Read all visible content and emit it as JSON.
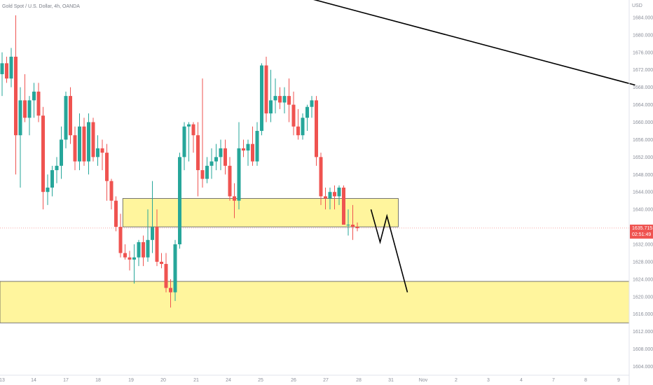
{
  "header": {
    "symbol_title": "Gold Spot / U.S. Dollar, 4h, OANDA"
  },
  "price_axis": {
    "currency": "USD",
    "ticks": [
      "1684.000",
      "1680.000",
      "1676.000",
      "1672.000",
      "1668.000",
      "1664.000",
      "1660.000",
      "1656.000",
      "1652.000",
      "1648.000",
      "1644.000",
      "1640.000",
      "1636.000",
      "1632.000",
      "1628.000",
      "1624.000",
      "1620.000",
      "1616.000",
      "1612.000",
      "1608.000",
      "1604.000"
    ],
    "last_price": "1635.715",
    "countdown": "02:51:49"
  },
  "time_axis": {
    "ticks": [
      "13",
      "14",
      "17",
      "18",
      "19",
      "20",
      "21",
      "24",
      "25",
      "26",
      "27",
      "28",
      "31",
      "Nov",
      "2",
      "3",
      "4",
      "7",
      "8",
      "9"
    ]
  },
  "colors": {
    "up": "#26a69a",
    "down": "#ef5350",
    "zone_fill": "#fff59d",
    "zone_border": "#555555",
    "line": "#000000",
    "price_tag": "#ef5350"
  },
  "chart_data": {
    "type": "candlestick",
    "instrument": "Gold Spot / U.S. Dollar",
    "timeframe": "4h",
    "x_ticks": [
      "13",
      "14",
      "17",
      "18",
      "19",
      "20",
      "21",
      "24",
      "25",
      "26",
      "27",
      "28",
      "31",
      "Nov",
      "2",
      "3",
      "4",
      "7",
      "8",
      "9"
    ],
    "ylim": [
      1602,
      1688
    ],
    "y_ticks": [
      1604,
      1608,
      1612,
      1616,
      1620,
      1624,
      1628,
      1632,
      1636,
      1640,
      1644,
      1648,
      1652,
      1656,
      1660,
      1664,
      1668,
      1672,
      1676,
      1680,
      1684
    ],
    "candles": [
      {
        "o": 1671.0,
        "h": 1676.0,
        "l": 1666.0,
        "c": 1673.5
      },
      {
        "o": 1673.5,
        "h": 1675.0,
        "l": 1669.0,
        "c": 1670.0
      },
      {
        "o": 1670.0,
        "h": 1677.0,
        "l": 1668.0,
        "c": 1675.0
      },
      {
        "o": 1675.0,
        "h": 1684.5,
        "l": 1648.0,
        "c": 1657.0
      },
      {
        "o": 1657.0,
        "h": 1668.0,
        "l": 1645.0,
        "c": 1665.0
      },
      {
        "o": 1665.0,
        "h": 1671.0,
        "l": 1660.0,
        "c": 1661.0
      },
      {
        "o": 1661.0,
        "h": 1666.0,
        "l": 1657.0,
        "c": 1665.0
      },
      {
        "o": 1665.0,
        "h": 1669.0,
        "l": 1661.0,
        "c": 1667.0
      },
      {
        "o": 1667.0,
        "h": 1669.0,
        "l": 1660.0,
        "c": 1661.5
      },
      {
        "o": 1661.5,
        "h": 1663.5,
        "l": 1640.0,
        "c": 1644.0
      },
      {
        "o": 1644.0,
        "h": 1648.0,
        "l": 1641.0,
        "c": 1645.0
      },
      {
        "o": 1645.0,
        "h": 1650.0,
        "l": 1643.0,
        "c": 1649.0
      },
      {
        "o": 1649.0,
        "h": 1652.0,
        "l": 1646.0,
        "c": 1650.0
      },
      {
        "o": 1650.0,
        "h": 1659.0,
        "l": 1647.0,
        "c": 1656.0
      },
      {
        "o": 1656.0,
        "h": 1667.0,
        "l": 1654.0,
        "c": 1666.0
      },
      {
        "o": 1666.0,
        "h": 1668.0,
        "l": 1655.0,
        "c": 1657.0
      },
      {
        "o": 1657.0,
        "h": 1659.0,
        "l": 1649.0,
        "c": 1651.0
      },
      {
        "o": 1651.0,
        "h": 1662.0,
        "l": 1649.0,
        "c": 1659.0
      },
      {
        "o": 1659.0,
        "h": 1661.0,
        "l": 1650.0,
        "c": 1651.0
      },
      {
        "o": 1651.0,
        "h": 1662.0,
        "l": 1648.0,
        "c": 1660.0
      },
      {
        "o": 1660.0,
        "h": 1661.0,
        "l": 1651.0,
        "c": 1652.0
      },
      {
        "o": 1652.0,
        "h": 1657.0,
        "l": 1650.0,
        "c": 1654.0
      },
      {
        "o": 1654.0,
        "h": 1656.0,
        "l": 1649.0,
        "c": 1653.0
      },
      {
        "o": 1653.0,
        "h": 1655.0,
        "l": 1642.0,
        "c": 1646.5
      },
      {
        "o": 1646.5,
        "h": 1647.0,
        "l": 1640.0,
        "c": 1642.0
      },
      {
        "o": 1642.0,
        "h": 1643.0,
        "l": 1635.0,
        "c": 1636.0
      },
      {
        "o": 1636.0,
        "h": 1639.0,
        "l": 1629.0,
        "c": 1630.0
      },
      {
        "o": 1630.0,
        "h": 1632.0,
        "l": 1628.5,
        "c": 1629.0
      },
      {
        "o": 1629.0,
        "h": 1630.5,
        "l": 1626.0,
        "c": 1628.5
      },
      {
        "o": 1628.5,
        "h": 1632.0,
        "l": 1623.0,
        "c": 1629.0
      },
      {
        "o": 1629.0,
        "h": 1633.0,
        "l": 1627.0,
        "c": 1632.5
      },
      {
        "o": 1632.5,
        "h": 1634.0,
        "l": 1627.0,
        "c": 1629.0
      },
      {
        "o": 1629.0,
        "h": 1640.0,
        "l": 1628.0,
        "c": 1633.0
      },
      {
        "o": 1633.0,
        "h": 1646.5,
        "l": 1630.0,
        "c": 1636.0
      },
      {
        "o": 1636.0,
        "h": 1640.0,
        "l": 1627.0,
        "c": 1628.0
      },
      {
        "o": 1628.0,
        "h": 1630.0,
        "l": 1626.5,
        "c": 1627.5
      },
      {
        "o": 1627.5,
        "h": 1630.0,
        "l": 1621.0,
        "c": 1622.0
      },
      {
        "o": 1622.0,
        "h": 1624.0,
        "l": 1617.5,
        "c": 1621.0
      },
      {
        "o": 1621.0,
        "h": 1633.0,
        "l": 1619.0,
        "c": 1632.0
      },
      {
        "o": 1632.0,
        "h": 1653.0,
        "l": 1631.0,
        "c": 1652.0
      },
      {
        "o": 1652.0,
        "h": 1660.0,
        "l": 1649.0,
        "c": 1659.0
      },
      {
        "o": 1659.0,
        "h": 1660.0,
        "l": 1651.0,
        "c": 1659.5
      },
      {
        "o": 1659.5,
        "h": 1660.0,
        "l": 1653.0,
        "c": 1657.0
      },
      {
        "o": 1657.0,
        "h": 1660.0,
        "l": 1643.0,
        "c": 1649.0
      },
      {
        "o": 1649.0,
        "h": 1670.0,
        "l": 1645.0,
        "c": 1647.0
      },
      {
        "o": 1647.0,
        "h": 1652.0,
        "l": 1646.0,
        "c": 1650.0
      },
      {
        "o": 1650.0,
        "h": 1654.0,
        "l": 1647.0,
        "c": 1651.0
      },
      {
        "o": 1651.0,
        "h": 1655.0,
        "l": 1649.0,
        "c": 1652.0
      },
      {
        "o": 1652.0,
        "h": 1656.0,
        "l": 1649.0,
        "c": 1654.0
      },
      {
        "o": 1654.0,
        "h": 1656.0,
        "l": 1648.0,
        "c": 1650.0
      },
      {
        "o": 1650.0,
        "h": 1652.0,
        "l": 1642.0,
        "c": 1643.0
      },
      {
        "o": 1643.0,
        "h": 1646.0,
        "l": 1638.0,
        "c": 1642.0
      },
      {
        "o": 1642.0,
        "h": 1660.0,
        "l": 1640.0,
        "c": 1654.0
      },
      {
        "o": 1654.0,
        "h": 1656.0,
        "l": 1652.0,
        "c": 1653.5
      },
      {
        "o": 1653.5,
        "h": 1656.0,
        "l": 1650.0,
        "c": 1655.0
      },
      {
        "o": 1655.0,
        "h": 1659.0,
        "l": 1650.0,
        "c": 1651.0
      },
      {
        "o": 1651.0,
        "h": 1660.0,
        "l": 1650.0,
        "c": 1658.0
      },
      {
        "o": 1658.0,
        "h": 1673.5,
        "l": 1657.0,
        "c": 1673.0
      },
      {
        "o": 1673.0,
        "h": 1675.0,
        "l": 1660.0,
        "c": 1662.0
      },
      {
        "o": 1662.0,
        "h": 1672.0,
        "l": 1660.0,
        "c": 1665.0
      },
      {
        "o": 1665.0,
        "h": 1670.0,
        "l": 1662.0,
        "c": 1666.0
      },
      {
        "o": 1666.0,
        "h": 1668.0,
        "l": 1663.0,
        "c": 1664.5
      },
      {
        "o": 1664.5,
        "h": 1668.0,
        "l": 1662.0,
        "c": 1666.0
      },
      {
        "o": 1666.0,
        "h": 1670.0,
        "l": 1660.0,
        "c": 1664.0
      },
      {
        "o": 1664.0,
        "h": 1667.0,
        "l": 1657.0,
        "c": 1659.0
      },
      {
        "o": 1659.0,
        "h": 1663.0,
        "l": 1656.0,
        "c": 1657.0
      },
      {
        "o": 1657.0,
        "h": 1662.0,
        "l": 1656.0,
        "c": 1661.0
      },
      {
        "o": 1661.0,
        "h": 1664.0,
        "l": 1658.0,
        "c": 1663.5
      },
      {
        "o": 1663.5,
        "h": 1666.0,
        "l": 1661.0,
        "c": 1665.0
      },
      {
        "o": 1665.0,
        "h": 1666.0,
        "l": 1650.0,
        "c": 1652.0
      },
      {
        "o": 1652.0,
        "h": 1653.0,
        "l": 1641.0,
        "c": 1643.0
      },
      {
        "o": 1643.0,
        "h": 1645.0,
        "l": 1640.0,
        "c": 1642.5
      },
      {
        "o": 1642.5,
        "h": 1645.0,
        "l": 1640.0,
        "c": 1644.0
      },
      {
        "o": 1644.0,
        "h": 1645.5,
        "l": 1640.0,
        "c": 1643.0
      },
      {
        "o": 1643.0,
        "h": 1645.5,
        "l": 1641.0,
        "c": 1645.0
      },
      {
        "o": 1645.0,
        "h": 1645.5,
        "l": 1637.0,
        "c": 1636.5
      },
      {
        "o": 1636.5,
        "h": 1640.0,
        "l": 1634.0,
        "c": 1636.5
      },
      {
        "o": 1636.5,
        "h": 1641.0,
        "l": 1633.0,
        "c": 1636.0
      },
      {
        "o": 1636.0,
        "h": 1637.0,
        "l": 1635.0,
        "c": 1635.7
      }
    ],
    "price_line": 1635.715,
    "zones": [
      {
        "from": 1636.0,
        "to": 1642.5,
        "start_index": 26.5,
        "end_index": 87
      },
      {
        "from": 1614.0,
        "to": 1623.5,
        "start_index": -2,
        "end_index": 140
      }
    ],
    "trend_line": {
      "start": {
        "index": 67,
        "price": 1688.5
      },
      "end": {
        "index": 139,
        "price": 1668.5
      }
    },
    "projection": [
      {
        "index": 81,
        "price": 1640.0
      },
      {
        "index": 83,
        "price": 1632.5
      },
      {
        "index": 84.5,
        "price": 1638.5
      },
      {
        "index": 89,
        "price": 1621.0
      }
    ]
  }
}
